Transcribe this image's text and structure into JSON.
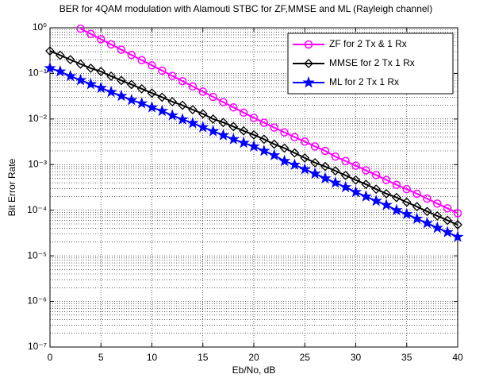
{
  "chart_data": {
    "type": "line",
    "title": "BER for 4QAM modulation with Alamouti STBC for ZF,MMSE and ML (Rayleigh channel)",
    "xlabel": "Eb/No, dB",
    "ylabel": "Bit Error Rate",
    "x": [
      0,
      1,
      2,
      3,
      4,
      5,
      6,
      7,
      8,
      9,
      10,
      11,
      12,
      13,
      14,
      15,
      16,
      17,
      18,
      19,
      20,
      21,
      22,
      23,
      24,
      25,
      26,
      27,
      28,
      29,
      30,
      31,
      32,
      33,
      34,
      35,
      36,
      37,
      38,
      39,
      40
    ],
    "series": [
      {
        "name": "ZF for 2 Tx & 1 Rx",
        "color": "#ff00ff",
        "marker": "circle",
        "values": [
          null,
          null,
          null,
          0.955,
          0.733,
          0.562,
          0.432,
          0.331,
          0.254,
          0.195,
          0.15,
          0.115,
          0.0881,
          0.0676,
          0.0519,
          0.0398,
          0.0305,
          0.0234,
          0.018,
          0.0138,
          0.0106,
          0.0083,
          0.0065,
          0.0051,
          0.004,
          0.0032,
          0.0025,
          0.002,
          0.0015,
          0.0012,
          0.00095,
          0.00075,
          0.00059,
          0.00046,
          0.00036,
          0.00029,
          0.00023,
          0.00018,
          0.00014,
          0.00011,
          8.6e-05
        ]
      },
      {
        "name": "MMSE for 2 Tx 1 Rx",
        "color": "#000000",
        "marker": "diamond",
        "values": [
          0.31,
          0.25,
          0.2,
          0.16,
          0.13,
          0.11,
          0.087,
          0.07,
          0.057,
          0.046,
          0.037,
          0.03,
          0.024,
          0.02,
          0.016,
          0.013,
          0.01,
          0.0084,
          0.0068,
          0.0055,
          0.0045,
          0.0036,
          0.0028,
          0.0023,
          0.0018,
          0.0014,
          0.0011,
          0.00091,
          0.00073,
          0.00058,
          0.00046,
          0.00037,
          0.00029,
          0.00023,
          0.00019,
          0.00015,
          0.00012,
          9.4e-05,
          7.5e-05,
          6e-05,
          4.8e-05
        ]
      },
      {
        "name": "ML for 2 Tx 1 Rx",
        "color": "#0000ff",
        "marker": "star",
        "values": [
          0.13,
          0.11,
          0.087,
          0.071,
          0.058,
          0.048,
          0.039,
          0.032,
          0.026,
          0.022,
          0.018,
          0.015,
          0.012,
          0.0098,
          0.0081,
          0.0066,
          0.0054,
          0.0044,
          0.0036,
          0.003,
          0.0025,
          0.002,
          0.0016,
          0.0012,
          0.00099,
          0.00079,
          0.00063,
          0.0005,
          0.0004,
          0.00032,
          0.00025,
          0.0002,
          0.00016,
          0.00013,
          0.0001,
          8.2e-05,
          6.5e-05,
          5.2e-05,
          4.1e-05,
          3.3e-05,
          2.6e-05
        ]
      }
    ],
    "xlim": [
      0,
      40
    ],
    "xticks": [
      0,
      5,
      10,
      15,
      20,
      25,
      30,
      35,
      40
    ],
    "ylim": [
      1e-07,
      1
    ],
    "ylog": true,
    "yticks": [
      {
        "value": 1e-07,
        "label": "10⁻⁷"
      },
      {
        "value": 1e-06,
        "label": "10⁻⁶"
      },
      {
        "value": 1e-05,
        "label": "10⁻⁵"
      },
      {
        "value": 0.0001,
        "label": "10⁻⁴"
      },
      {
        "value": 0.001,
        "label": "10⁻³"
      },
      {
        "value": 0.01,
        "label": "10⁻²"
      },
      {
        "value": 0.1,
        "label": "10⁻¹"
      },
      {
        "value": 1,
        "label": "10⁰"
      }
    ],
    "grid": true,
    "minor_grid": true,
    "legend": "upper right"
  }
}
